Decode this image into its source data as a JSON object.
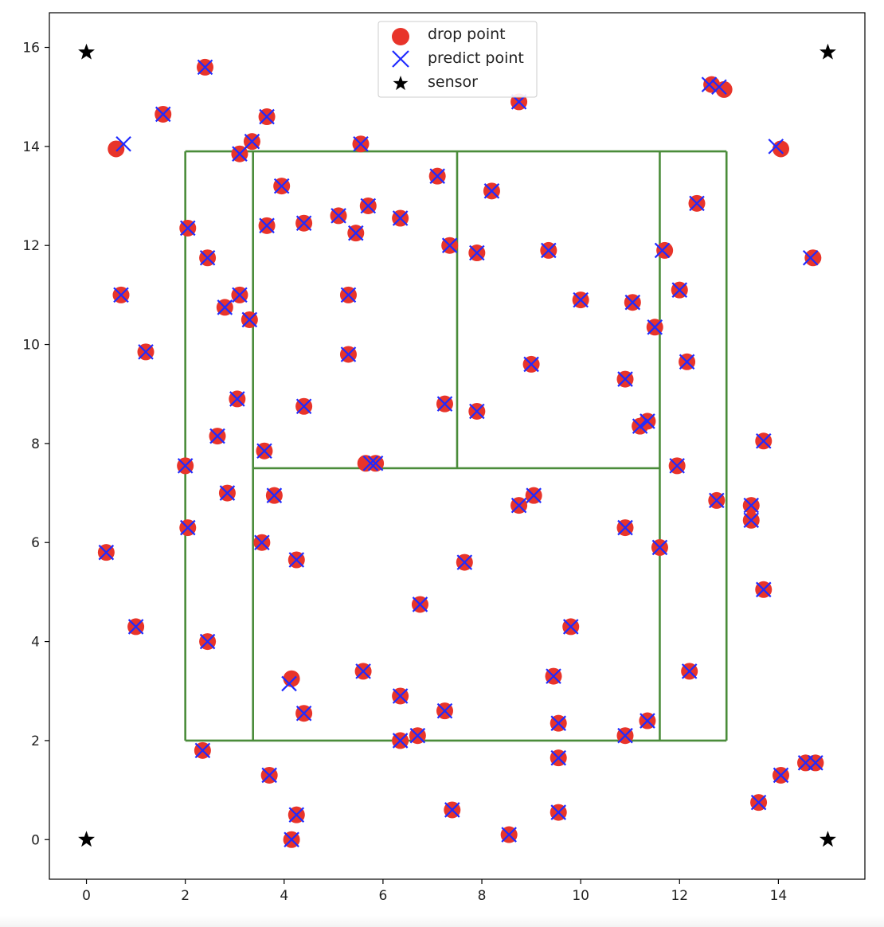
{
  "chart_data": {
    "type": "scatter",
    "title": "",
    "xlabel": "",
    "ylabel": "",
    "xlim": [
      -0.75,
      15.75
    ],
    "ylim": [
      -0.8,
      16.7
    ],
    "x_ticks": [
      0,
      2,
      4,
      6,
      8,
      10,
      12,
      14
    ],
    "y_ticks": [
      0,
      2,
      4,
      6,
      8,
      10,
      12,
      14,
      16
    ],
    "x_tick_labels": [
      "0",
      "2",
      "4",
      "6",
      "8",
      "10",
      "12",
      "14"
    ],
    "y_tick_labels": [
      "0",
      "2",
      "4",
      "6",
      "8",
      "10",
      "12",
      "14",
      "16"
    ],
    "grid": false,
    "legend_position": "top-center",
    "colors": {
      "drop": "#e8342a",
      "predict": "#1f2bff",
      "sensor": "#000000",
      "court": "#4a8c3a"
    },
    "legend": [
      {
        "label": "drop point",
        "marker": "circle"
      },
      {
        "label": "predict point",
        "marker": "x"
      },
      {
        "label": "sensor",
        "marker": "star"
      }
    ],
    "court_lines": [
      {
        "x1": 2.0,
        "y1": 2.0,
        "x2": 12.95,
        "y2": 2.0
      },
      {
        "x1": 2.0,
        "y1": 13.9,
        "x2": 12.95,
        "y2": 13.9
      },
      {
        "x1": 2.0,
        "y1": 2.0,
        "x2": 2.0,
        "y2": 13.9
      },
      {
        "x1": 12.95,
        "y1": 2.0,
        "x2": 12.95,
        "y2": 13.9
      },
      {
        "x1": 3.37,
        "y1": 2.0,
        "x2": 3.37,
        "y2": 13.9
      },
      {
        "x1": 11.6,
        "y1": 2.0,
        "x2": 11.6,
        "y2": 13.9
      },
      {
        "x1": 3.37,
        "y1": 7.5,
        "x2": 11.6,
        "y2": 7.5
      },
      {
        "x1": 7.5,
        "y1": 7.5,
        "x2": 7.5,
        "y2": 13.9
      }
    ],
    "sensors": [
      {
        "x": 0,
        "y": 15.9
      },
      {
        "x": 15,
        "y": 15.9
      },
      {
        "x": 0,
        "y": 0
      },
      {
        "x": 15,
        "y": 0
      }
    ],
    "points": [
      {
        "x": 2.4,
        "y": 15.6
      },
      {
        "x": 1.55,
        "y": 14.65
      },
      {
        "x": 0.6,
        "y": 13.95,
        "px": 0.75,
        "py": 14.05
      },
      {
        "x": 3.65,
        "y": 14.6
      },
      {
        "x": 3.35,
        "y": 14.1
      },
      {
        "x": 3.1,
        "y": 13.85
      },
      {
        "x": 5.55,
        "y": 14.05
      },
      {
        "x": 8.75,
        "y": 14.9
      },
      {
        "x": 12.65,
        "y": 15.25,
        "px": 12.6,
        "py": 15.25
      },
      {
        "x": 12.9,
        "y": 15.15,
        "px": 12.8,
        "py": 15.2
      },
      {
        "x": 14.05,
        "y": 13.95,
        "px": 13.95,
        "py": 14.0
      },
      {
        "x": 3.95,
        "y": 13.2
      },
      {
        "x": 7.1,
        "y": 13.4
      },
      {
        "x": 8.2,
        "y": 13.1
      },
      {
        "x": 12.35,
        "y": 12.85
      },
      {
        "x": 2.05,
        "y": 12.35
      },
      {
        "x": 2.45,
        "y": 11.75
      },
      {
        "x": 3.65,
        "y": 12.4
      },
      {
        "x": 4.4,
        "y": 12.45
      },
      {
        "x": 5.1,
        "y": 12.6
      },
      {
        "x": 5.45,
        "y": 12.25
      },
      {
        "x": 5.7,
        "y": 12.8
      },
      {
        "x": 6.35,
        "y": 12.55
      },
      {
        "x": 7.35,
        "y": 12.0
      },
      {
        "x": 7.9,
        "y": 11.85
      },
      {
        "x": 9.35,
        "y": 11.9
      },
      {
        "x": 11.7,
        "y": 11.9,
        "px": 11.65,
        "py": 11.9
      },
      {
        "x": 14.7,
        "y": 11.75,
        "px": 14.65,
        "py": 11.75
      },
      {
        "x": 0.7,
        "y": 11.0
      },
      {
        "x": 2.8,
        "y": 10.75
      },
      {
        "x": 3.1,
        "y": 11.0
      },
      {
        "x": 3.3,
        "y": 10.5
      },
      {
        "x": 5.3,
        "y": 11.0
      },
      {
        "x": 10.0,
        "y": 10.9
      },
      {
        "x": 11.05,
        "y": 10.85
      },
      {
        "x": 12.0,
        "y": 11.1
      },
      {
        "x": 11.5,
        "y": 10.35
      },
      {
        "x": 1.2,
        "y": 9.85
      },
      {
        "x": 5.3,
        "y": 9.8
      },
      {
        "x": 9.0,
        "y": 9.6
      },
      {
        "x": 10.9,
        "y": 9.3
      },
      {
        "x": 12.15,
        "y": 9.65
      },
      {
        "x": 3.05,
        "y": 8.9
      },
      {
        "x": 4.4,
        "y": 8.75
      },
      {
        "x": 7.25,
        "y": 8.8
      },
      {
        "x": 7.9,
        "y": 8.65
      },
      {
        "x": 11.2,
        "y": 8.35
      },
      {
        "x": 11.35,
        "y": 8.45
      },
      {
        "x": 2.65,
        "y": 8.15
      },
      {
        "x": 3.6,
        "y": 7.85
      },
      {
        "x": 13.7,
        "y": 8.05
      },
      {
        "x": 2.0,
        "y": 7.55
      },
      {
        "x": 5.65,
        "y": 7.6,
        "px": 5.75,
        "py": 7.6
      },
      {
        "x": 5.85,
        "y": 7.6
      },
      {
        "x": 11.95,
        "y": 7.55
      },
      {
        "x": 2.85,
        "y": 7.0
      },
      {
        "x": 3.8,
        "y": 6.95
      },
      {
        "x": 8.75,
        "y": 6.75
      },
      {
        "x": 9.05,
        "y": 6.95
      },
      {
        "x": 12.75,
        "y": 6.85
      },
      {
        "x": 13.45,
        "y": 6.75
      },
      {
        "x": 13.45,
        "y": 6.45
      },
      {
        "x": 2.05,
        "y": 6.3
      },
      {
        "x": 3.55,
        "y": 6.0
      },
      {
        "x": 10.9,
        "y": 6.3
      },
      {
        "x": 11.6,
        "y": 5.9
      },
      {
        "x": 0.4,
        "y": 5.8
      },
      {
        "x": 4.25,
        "y": 5.65
      },
      {
        "x": 7.65,
        "y": 5.6
      },
      {
        "x": 13.7,
        "y": 5.05
      },
      {
        "x": 6.75,
        "y": 4.75
      },
      {
        "x": 1.0,
        "y": 4.3
      },
      {
        "x": 9.8,
        "y": 4.3
      },
      {
        "x": 2.45,
        "y": 4.0
      },
      {
        "x": 12.2,
        "y": 3.4
      },
      {
        "x": 4.15,
        "y": 3.25,
        "px": 4.1,
        "py": 3.15
      },
      {
        "x": 5.6,
        "y": 3.4
      },
      {
        "x": 9.45,
        "y": 3.3
      },
      {
        "x": 6.35,
        "y": 2.9
      },
      {
        "x": 4.4,
        "y": 2.55
      },
      {
        "x": 7.25,
        "y": 2.6
      },
      {
        "x": 9.55,
        "y": 2.35
      },
      {
        "x": 11.35,
        "y": 2.4
      },
      {
        "x": 6.35,
        "y": 2.0
      },
      {
        "x": 6.7,
        "y": 2.1
      },
      {
        "x": 10.9,
        "y": 2.1
      },
      {
        "x": 2.35,
        "y": 1.8
      },
      {
        "x": 9.55,
        "y": 1.65
      },
      {
        "x": 3.7,
        "y": 1.3
      },
      {
        "x": 14.05,
        "y": 1.3
      },
      {
        "x": 14.55,
        "y": 1.55
      },
      {
        "x": 14.75,
        "y": 1.55
      },
      {
        "x": 13.6,
        "y": 0.75
      },
      {
        "x": 4.25,
        "y": 0.5
      },
      {
        "x": 7.4,
        "y": 0.6
      },
      {
        "x": 9.55,
        "y": 0.55
      },
      {
        "x": 4.15,
        "y": 0.0
      },
      {
        "x": 8.55,
        "y": 0.1
      }
    ]
  }
}
